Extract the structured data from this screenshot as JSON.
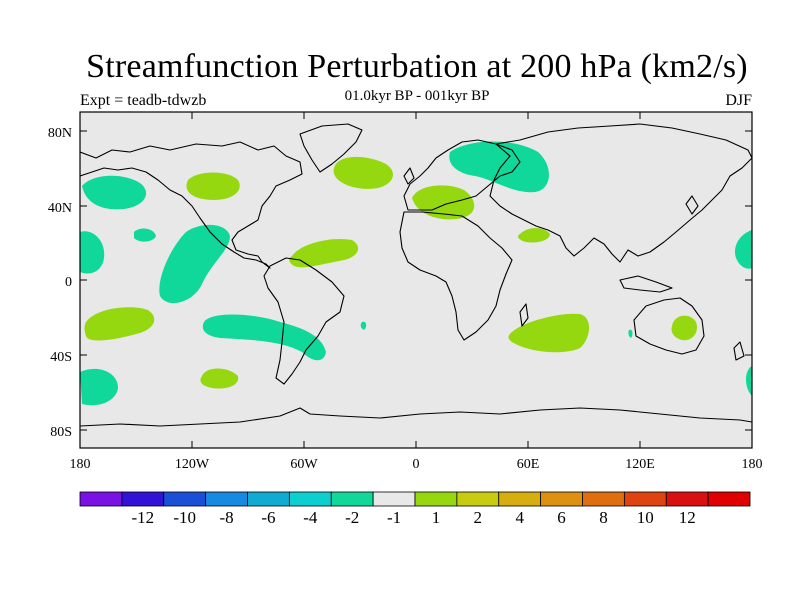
{
  "title": "Streamfunction Perturbation at 200 hPa (km2/s)",
  "expt": "Expt = teadb-tdwzb",
  "subtitle": "01.0kyr BP - 001kyr BP",
  "season": "DJF",
  "map": {
    "background_color": "#e8e8e8",
    "lat_labels": [
      "80N",
      "40N",
      "0",
      "40S",
      "80S"
    ],
    "lon_labels": [
      "180",
      "120W",
      "60W",
      "0",
      "60E",
      "120E",
      "180"
    ]
  },
  "colorbar": {
    "colors": [
      "#7a12e6",
      "#3212d6",
      "#1a4fd8",
      "#1689e0",
      "#10aad2",
      "#0ecfcf",
      "#10d89a",
      "#e8e8e8",
      "#96d810",
      "#c8cc10",
      "#d6ae10",
      "#de9010",
      "#de6e10",
      "#de4410",
      "#d81010",
      "#e00000"
    ],
    "labels": [
      "-12",
      "-10",
      "-8",
      "-6",
      "-4",
      "-2",
      "-1",
      "1",
      "2",
      "4",
      "6",
      "8",
      "10",
      "12"
    ]
  },
  "chart_data": {
    "type": "map",
    "projection": "cylindrical equidistant",
    "variable": "200 hPa streamfunction perturbation",
    "units": "km2/s",
    "contour_levels": [
      -12,
      -10,
      -8,
      -6,
      -4,
      -2,
      -1,
      1,
      2,
      4,
      6,
      8,
      10,
      12
    ],
    "lat_range": [
      -90,
      90
    ],
    "lon_range": [
      -180,
      180
    ],
    "negative_regions": [
      {
        "name": "north-pacific",
        "lon": -160,
        "lat": 48,
        "class": "-2 to -1"
      },
      {
        "name": "north-atlantic-scandinavia",
        "lon": 35,
        "lat": 62,
        "class": "-2 to -1"
      },
      {
        "name": "east-tropical-pacific",
        "lon": -115,
        "lat": 8,
        "class": "-2 to -1"
      },
      {
        "name": "central-tropical-pacific",
        "lon": -175,
        "lat": 10,
        "class": "-2 to -1"
      },
      {
        "name": "south-pacific-argentina",
        "lon": -75,
        "lat": -28,
        "class": "-2 to -1"
      },
      {
        "name": "southern-ocean-pacific",
        "lon": -167,
        "lat": -60,
        "class": "-2 to -1"
      },
      {
        "name": "west-pacific-edge",
        "lon": 178,
        "lat": 20,
        "class": "-2 to -1"
      }
    ],
    "positive_regions": [
      {
        "name": "north-america",
        "lon": -110,
        "lat": 48,
        "class": "1 to 2"
      },
      {
        "name": "north-atlantic",
        "lon": -28,
        "lat": 58,
        "class": "1 to 2"
      },
      {
        "name": "europe-mediterranean",
        "lon": 15,
        "lat": 41,
        "class": "1 to 2"
      },
      {
        "name": "tropical-atlantic",
        "lon": -45,
        "lat": 15,
        "class": "1 to 2"
      },
      {
        "name": "arabian-sea",
        "lon": 62,
        "lat": 22,
        "class": "1 to 2"
      },
      {
        "name": "south-pacific",
        "lon": -160,
        "lat": -23,
        "class": "1 to 2"
      },
      {
        "name": "southern-pacific",
        "lon": -112,
        "lat": -52,
        "class": "1 to 2"
      },
      {
        "name": "south-indian-ocean",
        "lon": 70,
        "lat": -35,
        "class": "1 to 2"
      },
      {
        "name": "australia",
        "lon": 136,
        "lat": -22,
        "class": "1 to 2"
      }
    ]
  }
}
